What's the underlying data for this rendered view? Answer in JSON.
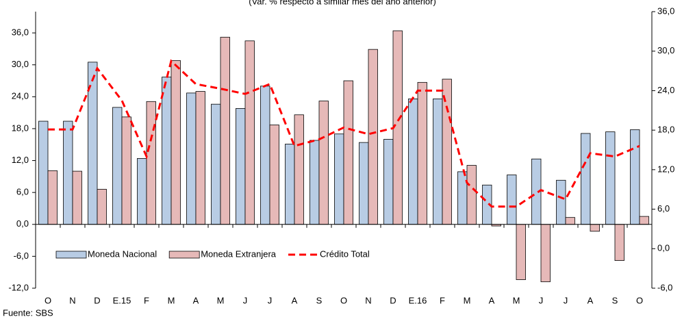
{
  "chart_data": {
    "type": "bar-line",
    "title": "(Var. % respecto a similar mes del año anterior)",
    "source": "Fuente: SBS",
    "categories": [
      "O",
      "N",
      "D",
      "E.15",
      "F",
      "M",
      "A",
      "M",
      "J",
      "J",
      "A",
      "S",
      "O",
      "N",
      "D",
      "E.16",
      "F",
      "M",
      "A",
      "M",
      "J",
      "J",
      "A",
      "S",
      "O"
    ],
    "series": [
      {
        "name": "Moneda Nacional",
        "type": "bar",
        "color": "#b8cce4",
        "values": [
          19.4,
          19.4,
          30.5,
          22.0,
          12.4,
          27.7,
          24.7,
          22.6,
          21.8,
          26.0,
          15.1,
          15.8,
          17.0,
          15.4,
          16.0,
          23.6,
          23.6,
          9.9,
          7.4,
          9.3,
          12.3,
          8.3,
          17.1,
          17.4,
          17.8
        ]
      },
      {
        "name": "Moneda Extranjera",
        "type": "bar",
        "color": "#e6b9b8",
        "values": [
          10.1,
          10.0,
          6.6,
          20.2,
          23.1,
          30.8,
          25.0,
          35.2,
          34.5,
          18.7,
          20.6,
          23.2,
          27.0,
          32.9,
          36.4,
          26.7,
          27.3,
          11.1,
          -0.3,
          -10.4,
          -10.8,
          1.3,
          -1.3,
          -6.8,
          1.5
        ]
      },
      {
        "name": "Crédito Total",
        "type": "line",
        "axis": "y2",
        "color": "#ff0000",
        "values": [
          18.1,
          18.1,
          27.4,
          22.5,
          14.0,
          28.5,
          25.0,
          24.3,
          23.5,
          25.0,
          15.6,
          16.6,
          18.4,
          17.4,
          18.3,
          24.0,
          24.0,
          10.0,
          6.4,
          6.4,
          8.9,
          7.5,
          14.5,
          14.0,
          15.6
        ]
      }
    ],
    "ylim": [
      -12,
      40
    ],
    "yticks": [
      {
        "value": -12,
        "label": "-12,0"
      },
      {
        "value": -6,
        "label": "-6,0"
      },
      {
        "value": 0,
        "label": "0,0"
      },
      {
        "value": 6,
        "label": "6,0"
      },
      {
        "value": 12,
        "label": "12,0"
      },
      {
        "value": 18,
        "label": "18,0"
      },
      {
        "value": 24,
        "label": "24,0"
      },
      {
        "value": 30,
        "label": "30,0"
      },
      {
        "value": 36,
        "label": "36,0"
      }
    ],
    "y2lim": [
      -6,
      36
    ],
    "y2ticks": [
      {
        "value": -6,
        "label": "-6,0"
      },
      {
        "value": 0,
        "label": "0,0"
      },
      {
        "value": 6,
        "label": "6,0"
      },
      {
        "value": 12,
        "label": "12,0"
      },
      {
        "value": 18,
        "label": "18,0"
      },
      {
        "value": 24,
        "label": "24,0"
      },
      {
        "value": 30,
        "label": "30,0"
      },
      {
        "value": 36,
        "label": "36,0"
      }
    ],
    "legend": "inside-lower-left"
  }
}
